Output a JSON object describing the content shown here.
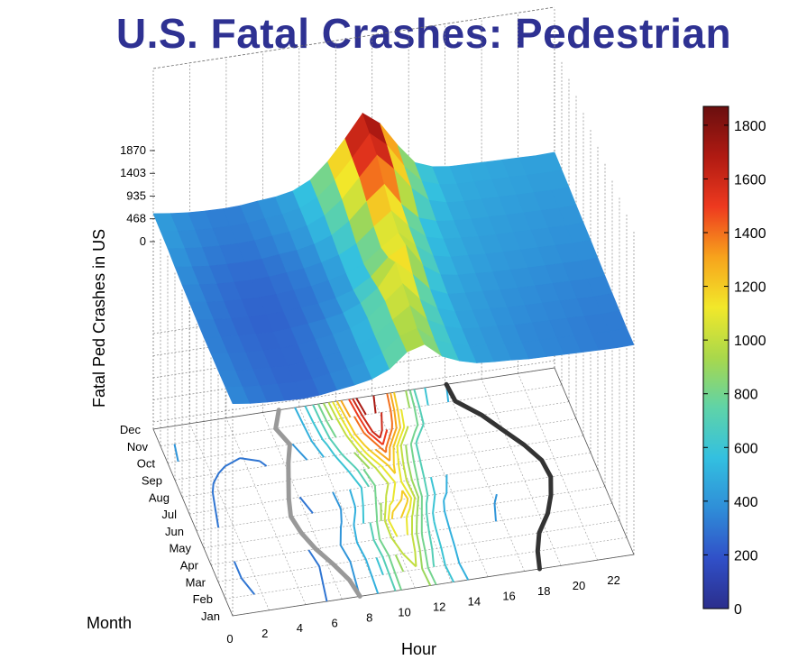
{
  "chart_data": {
    "type": "surface",
    "title": "U.S. Fatal Crashes: Pedestrian",
    "xlabel": "Hour",
    "ylabel": "Month",
    "zlabel": "Fatal Ped Crashes in US",
    "x_ticks": [
      "0",
      "2",
      "4",
      "6",
      "8",
      "10",
      "12",
      "14",
      "16",
      "18",
      "20",
      "22"
    ],
    "y_ticks": [
      "Jan",
      "Feb",
      "Mar",
      "Apr",
      "May",
      "Jun",
      "Jul",
      "Aug",
      "Sep",
      "Oct",
      "Nov",
      "Dec"
    ],
    "z_ticks": [
      "0",
      "468",
      "935",
      "1403",
      "1870"
    ],
    "zlim": [
      0,
      1870
    ],
    "colorbar": {
      "ticks": [
        "0",
        "200",
        "400",
        "600",
        "800",
        "1000",
        "1200",
        "1400",
        "1600",
        "1800"
      ],
      "range": [
        0,
        1870
      ],
      "colors": [
        "#2b2e8c",
        "#3050c8",
        "#2f8ed8",
        "#33c0e0",
        "#5fd3a8",
        "#a9d84b",
        "#f2e82a",
        "#f7a31c",
        "#ee3a1f",
        "#b01a12",
        "#6a0f0f"
      ]
    },
    "z_values": [
      [
        380,
        330,
        300,
        280,
        260,
        280,
        330,
        380,
        450,
        600,
        900,
        1000,
        700,
        550,
        450,
        420,
        400,
        370,
        360,
        350,
        340,
        330,
        320,
        330
      ],
      [
        370,
        320,
        290,
        270,
        250,
        270,
        320,
        370,
        440,
        590,
        880,
        980,
        690,
        540,
        440,
        410,
        390,
        360,
        350,
        340,
        330,
        320,
        310,
        320
      ],
      [
        360,
        310,
        280,
        260,
        240,
        260,
        310,
        360,
        430,
        580,
        860,
        1100,
        750,
        560,
        450,
        420,
        400,
        370,
        360,
        350,
        340,
        330,
        320,
        330
      ],
      [
        360,
        310,
        280,
        260,
        250,
        270,
        320,
        370,
        440,
        600,
        900,
        1200,
        820,
        580,
        460,
        430,
        410,
        380,
        370,
        360,
        350,
        340,
        330,
        340
      ],
      [
        350,
        300,
        270,
        250,
        240,
        260,
        300,
        340,
        410,
        560,
        820,
        1300,
        980,
        620,
        470,
        440,
        420,
        390,
        380,
        370,
        360,
        350,
        340,
        350
      ],
      [
        360,
        310,
        270,
        250,
        240,
        250,
        280,
        310,
        370,
        480,
        700,
        1050,
        1250,
        760,
        520,
        460,
        440,
        410,
        400,
        390,
        380,
        370,
        360,
        370
      ],
      [
        370,
        320,
        280,
        260,
        250,
        260,
        290,
        320,
        380,
        470,
        620,
        900,
        1150,
        820,
        560,
        480,
        460,
        430,
        420,
        410,
        400,
        390,
        380,
        390
      ],
      [
        380,
        330,
        290,
        270,
        260,
        270,
        300,
        330,
        400,
        500,
        680,
        980,
        1250,
        880,
        600,
        500,
        470,
        440,
        430,
        420,
        410,
        400,
        390,
        400
      ],
      [
        400,
        350,
        310,
        290,
        280,
        290,
        330,
        360,
        430,
        560,
        800,
        1150,
        1450,
        980,
        640,
        520,
        480,
        450,
        440,
        430,
        420,
        410,
        400,
        410
      ],
      [
        430,
        380,
        340,
        320,
        310,
        320,
        360,
        390,
        460,
        620,
        900,
        1300,
        1700,
        1350,
        900,
        600,
        500,
        470,
        460,
        450,
        440,
        430,
        420,
        430
      ],
      [
        440,
        390,
        350,
        330,
        320,
        330,
        370,
        400,
        470,
        640,
        950,
        1350,
        1800,
        1500,
        1000,
        640,
        520,
        480,
        470,
        460,
        450,
        440,
        430,
        440
      ],
      [
        450,
        400,
        360,
        340,
        330,
        340,
        380,
        410,
        480,
        650,
        980,
        1400,
        1870,
        1600,
        1100,
        680,
        540,
        490,
        480,
        470,
        460,
        450,
        440,
        450
      ]
    ],
    "contour_levels": [
      300,
      400,
      500,
      600,
      700,
      800,
      900,
      1000,
      1100,
      1200,
      1300,
      1400,
      1500,
      1600,
      1700,
      1800
    ],
    "shadow_lines": [
      "dark",
      "light"
    ]
  }
}
